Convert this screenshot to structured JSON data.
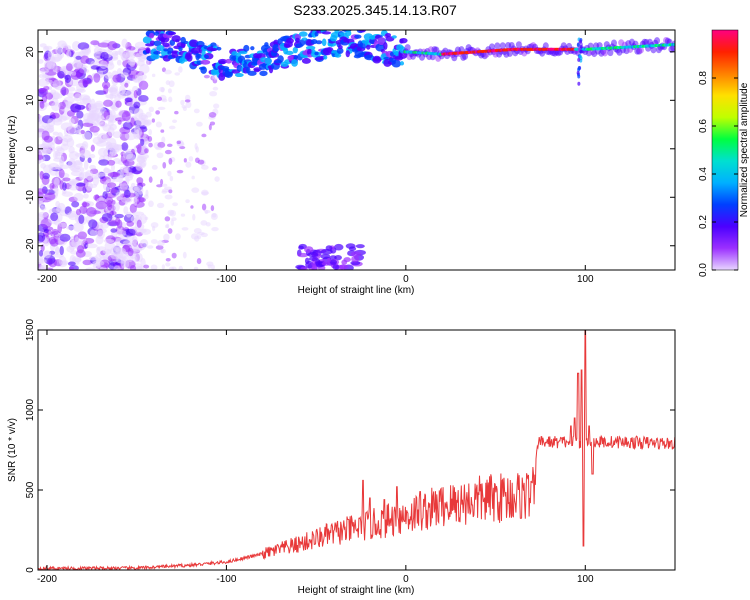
{
  "title": "S233.2025.345.14.13.R07",
  "colors": {
    "line": "#e8393a",
    "frame": "#000000"
  },
  "chart_data": [
    {
      "type": "heatmap",
      "xlabel": "Height of straight line (km)",
      "ylabel": "Frequency (Hz)",
      "xlim": [
        -205,
        150
      ],
      "ylim": [
        -25,
        24.5
      ],
      "xticks": [
        -200,
        -100,
        0,
        100
      ],
      "yticks": [
        -20,
        -10,
        0,
        10,
        20
      ],
      "colorbar": {
        "label": "Normalized spectral amplitude",
        "range": [
          0,
          1
        ],
        "ticks": [
          0.0,
          0.2,
          0.4,
          0.6,
          0.8
        ],
        "tick_labels": [
          "0.0",
          "0.2",
          "0.4",
          "0.6",
          "0.8"
        ],
        "colormap": [
          "#e8d6ff",
          "#9b30ff",
          "#4b00ff",
          "#0040ff",
          "#00b0ff",
          "#00e0d0",
          "#00ff40",
          "#c0ff00",
          "#ffe000",
          "#ff8000",
          "#ff2000",
          "#ff0080"
        ]
      },
      "dominant_ridge": {
        "description_points": [
          [
            -140,
            22
          ],
          [
            -120,
            20
          ],
          [
            -100,
            17.5
          ],
          [
            -80,
            18.5
          ],
          [
            -60,
            20.5
          ],
          [
            -40,
            22
          ],
          [
            -20,
            21.5
          ],
          [
            0,
            20
          ],
          [
            20,
            19.5
          ],
          [
            60,
            20.5
          ],
          [
            100,
            20.5
          ],
          [
            150,
            21.5
          ]
        ]
      }
    },
    {
      "type": "line",
      "xlabel": "Height of straight line (km)",
      "ylabel": "SNR (10 * v/v)",
      "xlim": [
        -205,
        150
      ],
      "ylim": [
        0,
        1500
      ],
      "xticks": [
        -200,
        -100,
        0,
        100
      ],
      "yticks": [
        0,
        500,
        1000,
        1500
      ],
      "series": [
        {
          "trend": [
            [
              -205,
              10
            ],
            [
              -150,
              12
            ],
            [
              -120,
              30
            ],
            [
              -100,
              50
            ],
            [
              -80,
              100
            ],
            [
              -60,
              160
            ],
            [
              -40,
              230
            ],
            [
              -20,
              280
            ],
            [
              -10,
              310
            ],
            [
              0,
              340
            ],
            [
              20,
              400
            ],
            [
              40,
              440
            ],
            [
              60,
              460
            ],
            [
              72,
              480
            ],
            [
              73,
              800
            ],
            [
              90,
              800
            ],
            [
              100,
              800
            ],
            [
              120,
              800
            ],
            [
              150,
              790
            ]
          ],
          "spikes": [
            [
              -24,
              560
            ],
            [
              -20,
              450
            ],
            [
              -12,
              440
            ],
            [
              -5,
              520
            ],
            [
              8,
              490
            ],
            [
              90,
              800
            ],
            [
              92,
              900
            ],
            [
              94,
              950
            ],
            [
              96,
              1230
            ],
            [
              98,
              1250
            ],
            [
              99,
              150
            ],
            [
              100,
              1500
            ],
            [
              102,
              900
            ],
            [
              104,
              600
            ]
          ]
        }
      ]
    }
  ]
}
